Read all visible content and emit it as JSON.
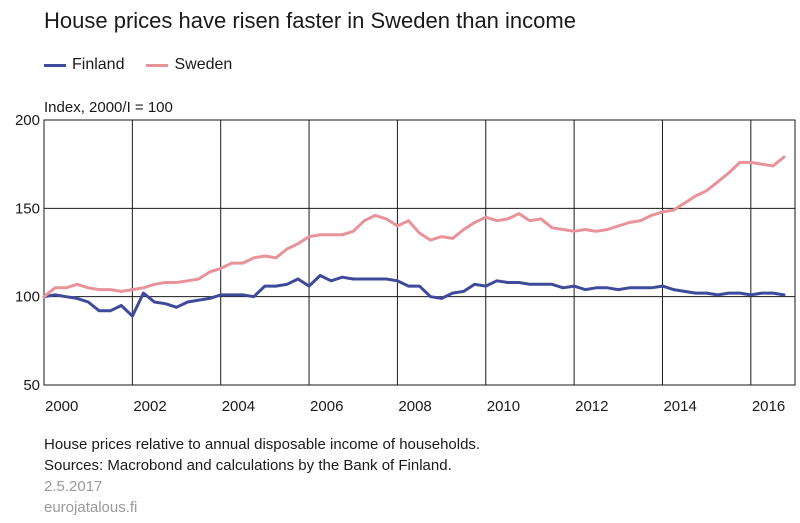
{
  "chart_data": {
    "type": "line",
    "title": "House prices have risen faster in Sweden than income",
    "unit_label": "Index, 2000/I = 100",
    "ylim": [
      50,
      200
    ],
    "yticks": [
      50,
      100,
      150,
      200
    ],
    "xlim": [
      2000,
      2017
    ],
    "xticks": [
      2000,
      2002,
      2004,
      2006,
      2008,
      2010,
      2012,
      2014,
      2016
    ],
    "grid": true,
    "legend_position": "top-left",
    "series": [
      {
        "name": "Finland",
        "color": "#3f4a9a",
        "x": [
          2000.0,
          2000.25,
          2000.5,
          2000.75,
          2001.0,
          2001.25,
          2001.5,
          2001.75,
          2002.0,
          2002.25,
          2002.5,
          2002.75,
          2003.0,
          2003.25,
          2003.5,
          2003.75,
          2004.0,
          2004.25,
          2004.5,
          2004.75,
          2005.0,
          2005.25,
          2005.5,
          2005.75,
          2006.0,
          2006.25,
          2006.5,
          2006.75,
          2007.0,
          2007.25,
          2007.5,
          2007.75,
          2008.0,
          2008.25,
          2008.5,
          2008.75,
          2009.0,
          2009.25,
          2009.5,
          2009.75,
          2010.0,
          2010.25,
          2010.5,
          2010.75,
          2011.0,
          2011.25,
          2011.5,
          2011.75,
          2012.0,
          2012.25,
          2012.5,
          2012.75,
          2013.0,
          2013.25,
          2013.5,
          2013.75,
          2014.0,
          2014.25,
          2014.5,
          2014.75,
          2015.0,
          2015.25,
          2015.5,
          2015.75,
          2016.0,
          2016.25,
          2016.5,
          2016.75
        ],
        "values": [
          100,
          101,
          100,
          99,
          97,
          92,
          92,
          95,
          89,
          102,
          97,
          96,
          94,
          97,
          98,
          99,
          101,
          101,
          101,
          100,
          106,
          106,
          107,
          110,
          106,
          112,
          109,
          111,
          110,
          110,
          110,
          110,
          109,
          106,
          106,
          100,
          99,
          102,
          103,
          107,
          106,
          109,
          108,
          108,
          107,
          107,
          107,
          105,
          106,
          104,
          105,
          105,
          104,
          105,
          105,
          105,
          106,
          104,
          103,
          102,
          102,
          101,
          102,
          102,
          101,
          102,
          102,
          101
        ]
      },
      {
        "name": "Sweden",
        "color": "#e8929a",
        "x": [
          2000.0,
          2000.25,
          2000.5,
          2000.75,
          2001.0,
          2001.25,
          2001.5,
          2001.75,
          2002.0,
          2002.25,
          2002.5,
          2002.75,
          2003.0,
          2003.25,
          2003.5,
          2003.75,
          2004.0,
          2004.25,
          2004.5,
          2004.75,
          2005.0,
          2005.25,
          2005.5,
          2005.75,
          2006.0,
          2006.25,
          2006.5,
          2006.75,
          2007.0,
          2007.25,
          2007.5,
          2007.75,
          2008.0,
          2008.25,
          2008.5,
          2008.75,
          2009.0,
          2009.25,
          2009.5,
          2009.75,
          2010.0,
          2010.25,
          2010.5,
          2010.75,
          2011.0,
          2011.25,
          2011.5,
          2011.75,
          2012.0,
          2012.25,
          2012.5,
          2012.75,
          2013.0,
          2013.25,
          2013.5,
          2013.75,
          2014.0,
          2014.25,
          2014.5,
          2014.75,
          2015.0,
          2015.25,
          2015.5,
          2015.75,
          2016.0,
          2016.25,
          2016.5,
          2016.75
        ],
        "values": [
          100,
          105,
          105,
          107,
          105,
          104,
          104,
          103,
          104,
          105,
          107,
          108,
          108,
          109,
          110,
          114,
          116,
          119,
          119,
          122,
          123,
          122,
          127,
          130,
          134,
          135,
          135,
          135,
          137,
          143,
          146,
          144,
          140,
          143,
          136,
          132,
          134,
          133,
          138,
          142,
          145,
          143,
          144,
          147,
          143,
          144,
          139,
          138,
          137,
          138,
          137,
          138,
          140,
          142,
          143,
          146,
          148,
          149,
          153,
          157,
          160,
          165,
          170,
          176,
          176,
          175,
          174,
          179
        ]
      }
    ]
  },
  "footer": {
    "note": "House prices relative to annual disposable income of households.",
    "sources": "Sources: Macrobond and calculations by the Bank of Finland.",
    "date": "2.5.2017",
    "site": "eurojatalous.fi"
  }
}
